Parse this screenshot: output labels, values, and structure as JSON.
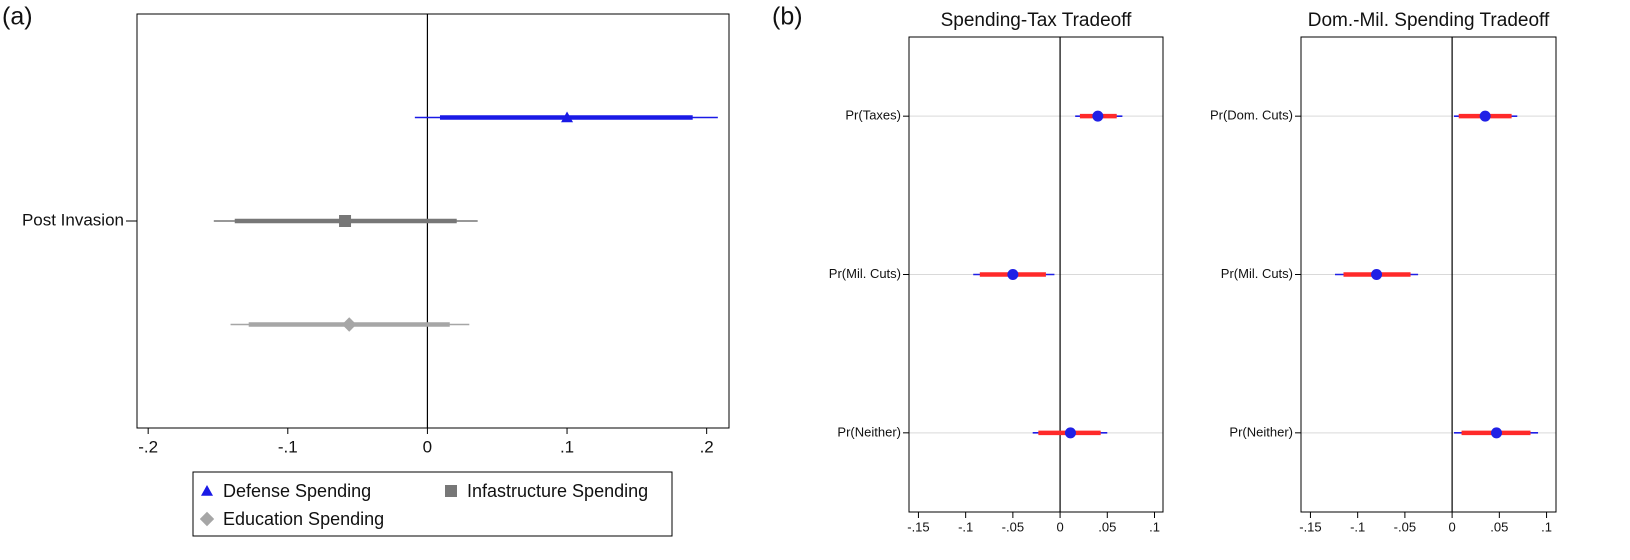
{
  "chart_data": [
    {
      "type": "coefplot",
      "panel_label": "(a)",
      "categories": [
        "Post Invasion"
      ],
      "xlim": [
        -0.208,
        0.216
      ],
      "xticks": [
        {
          "value": -0.2,
          "label": "-.2"
        },
        {
          "value": -0.1,
          "label": "-.1"
        },
        0,
        {
          "value": 0.1,
          "label": ".1"
        },
        {
          "value": 0.2,
          "label": ".2"
        }
      ],
      "xline": 0,
      "grid": false,
      "series": [
        {
          "name": "Defense Spending",
          "color": "#1a1ae6",
          "marker": "triangle",
          "values": [
            0.1
          ],
          "ci_outer": [
            [
              -0.009,
              0.208
            ]
          ],
          "ci_inner": [
            [
              0.009,
              0.19
            ]
          ]
        },
        {
          "name": "Infastructure Spending",
          "color": "#777777",
          "marker": "square",
          "values": [
            -0.059
          ],
          "ci_outer": [
            [
              -0.153,
              0.036
            ]
          ],
          "ci_inner": [
            [
              -0.138,
              0.021
            ]
          ]
        },
        {
          "name": "Education Spending",
          "color": "#a6a6a6",
          "marker": "diamond",
          "values": [
            -0.056
          ],
          "ci_outer": [
            [
              -0.141,
              0.03
            ]
          ],
          "ci_inner": [
            [
              -0.128,
              0.016
            ]
          ]
        }
      ]
    },
    {
      "type": "coefplot",
      "panel_label": "(b)",
      "title": "Spending-Tax Tradeoff",
      "categories": [
        "Pr(Taxes)",
        "Pr(Mil. Cuts)",
        "Pr(Neither)"
      ],
      "xlim": [
        -0.16,
        0.109
      ],
      "xticks": [
        {
          "value": -0.15,
          "label": "-.15"
        },
        {
          "value": -0.1,
          "label": "-.1"
        },
        {
          "value": -0.05,
          "label": "-.05"
        },
        0,
        {
          "value": 0.05,
          "label": ".05"
        },
        {
          "value": 0.1,
          "label": ".1"
        }
      ],
      "xline": 0,
      "grid": true,
      "series": [
        {
          "color": "#2020e6",
          "ci_color": "#ff2a2a",
          "marker": "circle",
          "values": [
            0.04,
            -0.05,
            0.011
          ],
          "ci_outer": [
            [
              0.016,
              0.066
            ],
            [
              -0.092,
              -0.006
            ],
            [
              -0.029,
              0.05
            ]
          ],
          "ci_inner": [
            [
              0.021,
              0.06
            ],
            [
              -0.085,
              -0.015
            ],
            [
              -0.023,
              0.043
            ]
          ]
        }
      ]
    },
    {
      "type": "coefplot",
      "title": "Dom.-Mil. Spending Tradeoff",
      "categories": [
        "Pr(Dom. Cuts)",
        "Pr(Mil. Cuts)",
        "Pr(Neither)"
      ],
      "xlim": [
        -0.16,
        0.11
      ],
      "xticks": [
        {
          "value": -0.15,
          "label": "-.15"
        },
        {
          "value": -0.1,
          "label": "-.1"
        },
        {
          "value": -0.05,
          "label": "-.05"
        },
        0,
        {
          "value": 0.05,
          "label": ".05"
        },
        {
          "value": 0.1,
          "label": ".1"
        }
      ],
      "xline": 0,
      "grid": true,
      "series": [
        {
          "color": "#2020e6",
          "ci_color": "#ff2a2a",
          "marker": "circle",
          "values": [
            0.035,
            -0.08,
            0.047
          ],
          "ci_outer": [
            [
              0.002,
              0.069
            ],
            [
              -0.124,
              -0.036
            ],
            [
              0.002,
              0.091
            ]
          ],
          "ci_inner": [
            [
              0.007,
              0.063
            ],
            [
              -0.115,
              -0.044
            ],
            [
              0.01,
              0.083
            ]
          ]
        }
      ]
    }
  ]
}
